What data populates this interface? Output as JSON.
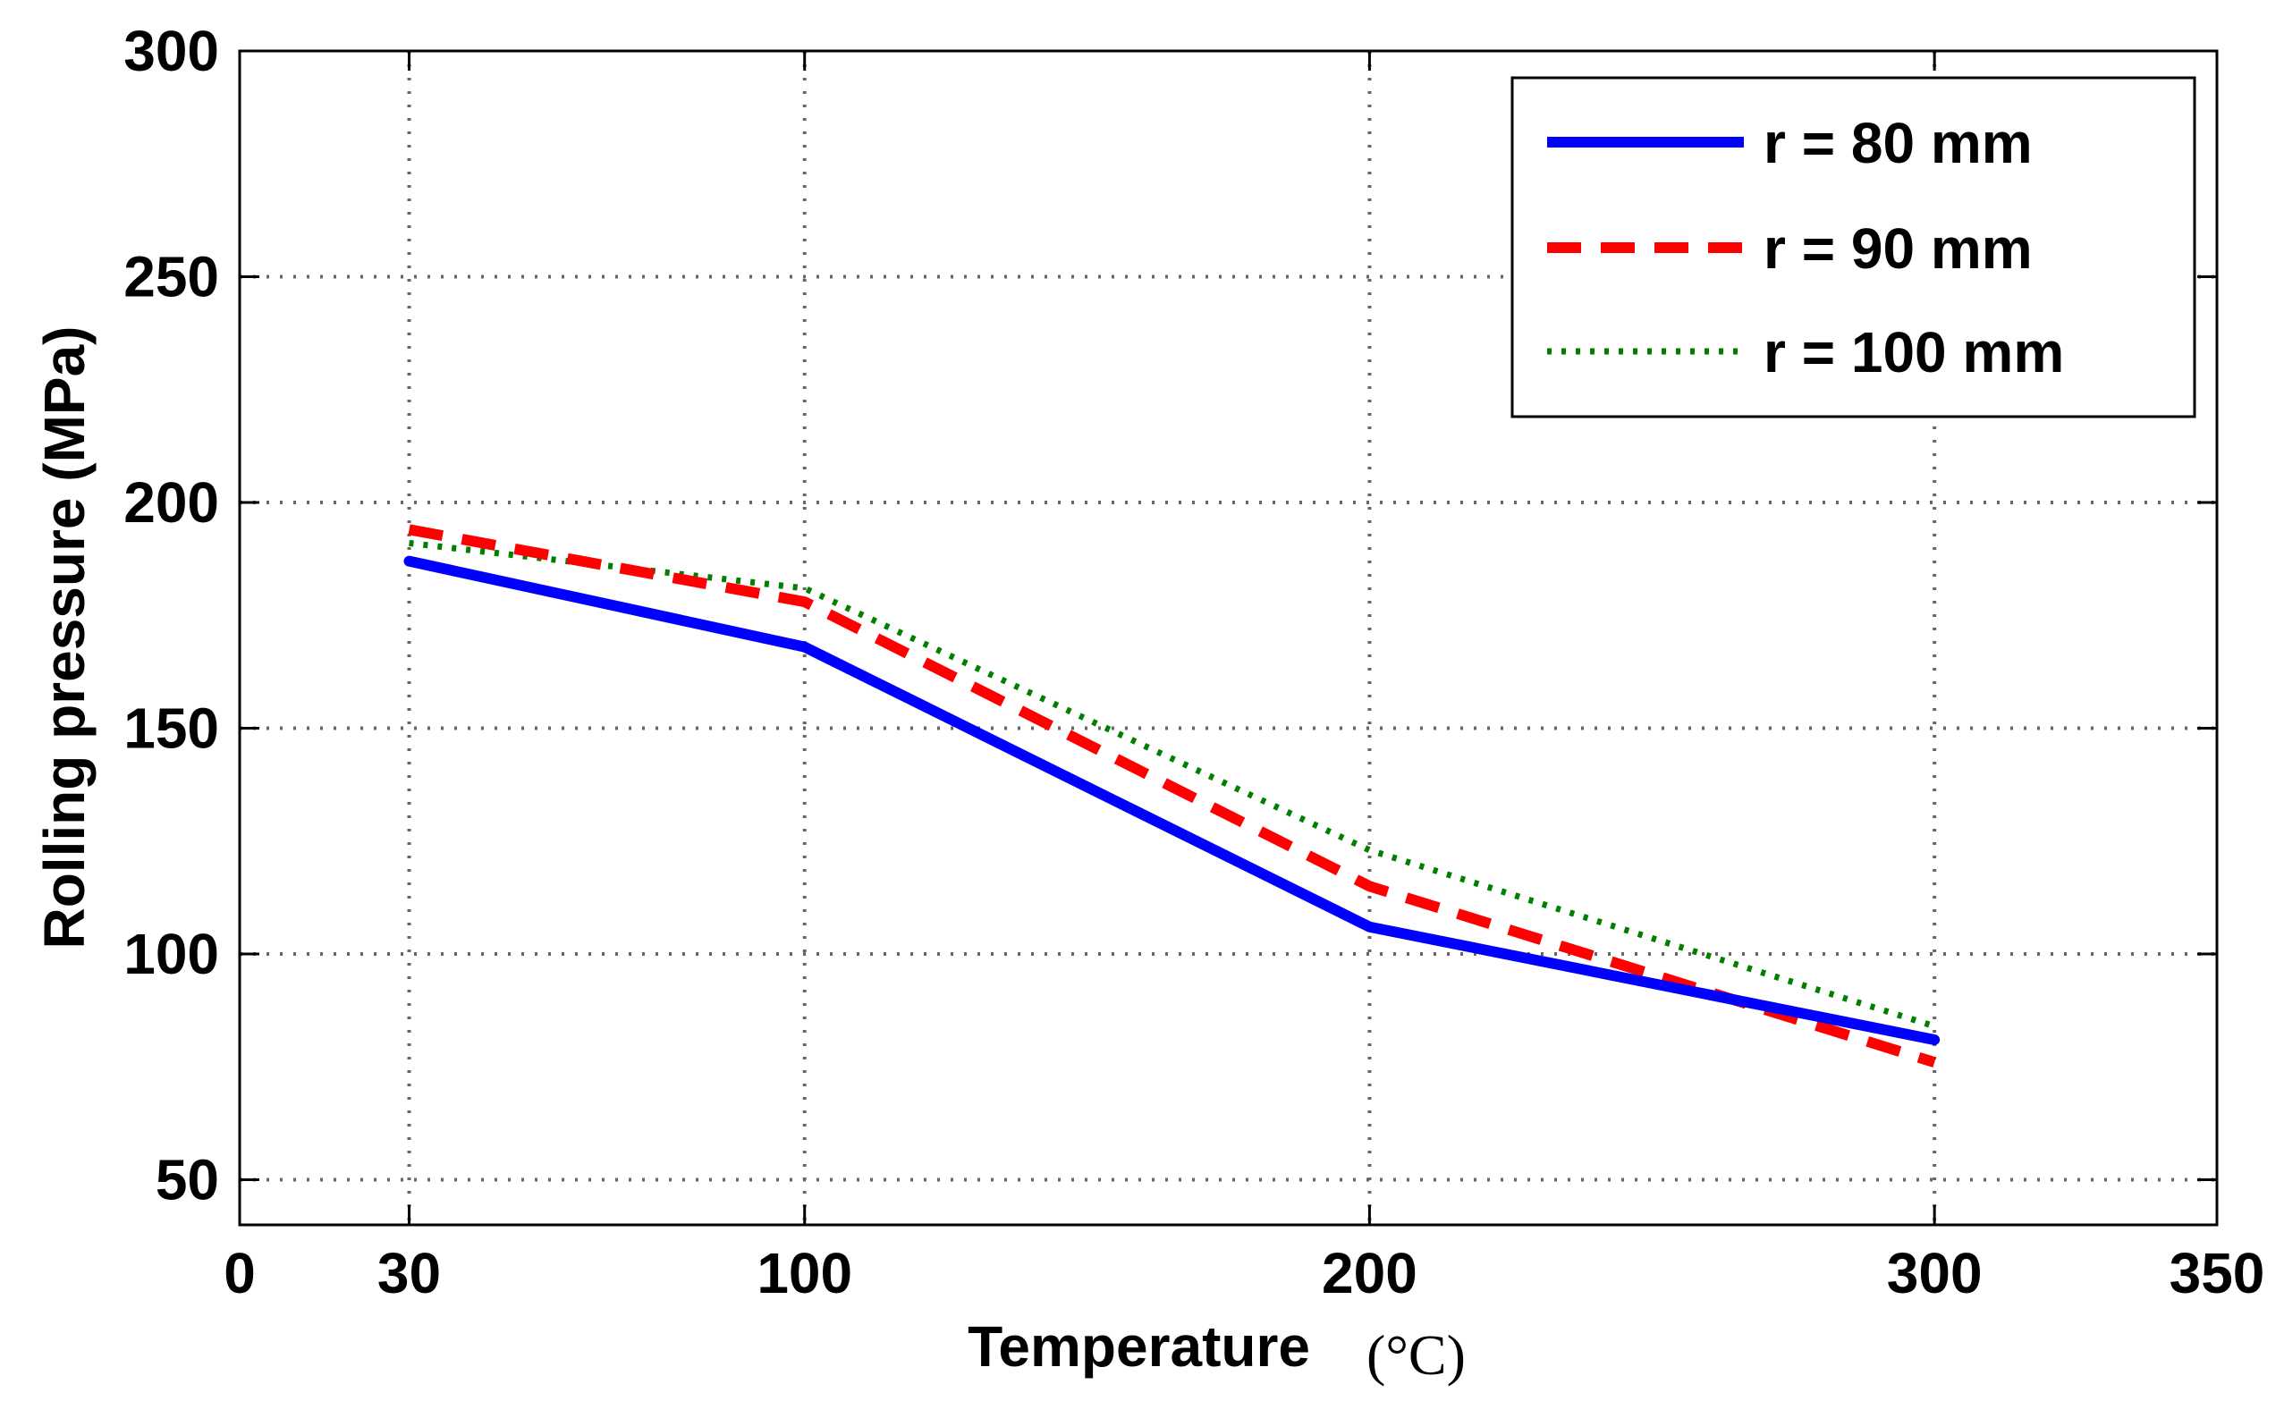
{
  "chart_data": {
    "type": "line",
    "title": "",
    "xlabel": "Temperature",
    "xlabel_unit": "(°C)",
    "ylabel": "Rolling pressure (MPa)",
    "xlim": [
      0,
      350
    ],
    "ylim": [
      40,
      300
    ],
    "grid": true,
    "legend_position": "top-right",
    "x_ticks": [
      0,
      30,
      100,
      200,
      300,
      350
    ],
    "x_tick_labels": [
      "0",
      "30",
      "100",
      "200",
      "300",
      "350"
    ],
    "y_ticks": [
      50,
      100,
      150,
      200,
      250,
      300
    ],
    "y_tick_labels": [
      "50",
      "100",
      "150",
      "200",
      "250",
      "300"
    ],
    "x": [
      30,
      100,
      200,
      300
    ],
    "series": [
      {
        "name": "r = 80 mm",
        "values": [
          187,
          168,
          106,
          81
        ],
        "color": "#0000ff",
        "style": "solid"
      },
      {
        "name": "r = 90 mm",
        "values": [
          194,
          178,
          115,
          76
        ],
        "color": "#ff0000",
        "style": "dashed"
      },
      {
        "name": "r = 100 mm",
        "values": [
          191,
          181,
          123,
          84
        ],
        "color": "#008000",
        "style": "dotted"
      }
    ]
  }
}
